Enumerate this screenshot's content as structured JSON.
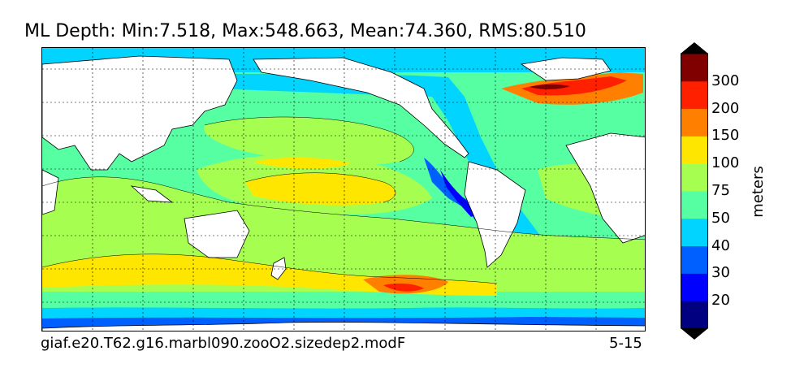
{
  "title": "ML Depth: Min:7.518, Max:548.663, Mean:74.360, RMS:80.510",
  "footer": {
    "case_name": "giaf.e20.T62.g16.marbl090.zooO2.sizedep2.modF",
    "years": "5-15"
  },
  "colorbar": {
    "label": "meters",
    "levels": [
      "20",
      "30",
      "40",
      "50",
      "75",
      "100",
      "150",
      "200",
      "300"
    ],
    "colors": [
      "#000080",
      "#0000ff",
      "#0060ff",
      "#00d4ff",
      "#57ffa3",
      "#a6ff50",
      "#ffe600",
      "#ff8000",
      "#ff2000",
      "#800000"
    ],
    "extend": "both"
  },
  "map": {
    "projection": "equirectangular",
    "longitude_range": [
      20,
      380
    ],
    "latitude_range": [
      -80,
      90
    ],
    "grid": "dashed"
  }
}
